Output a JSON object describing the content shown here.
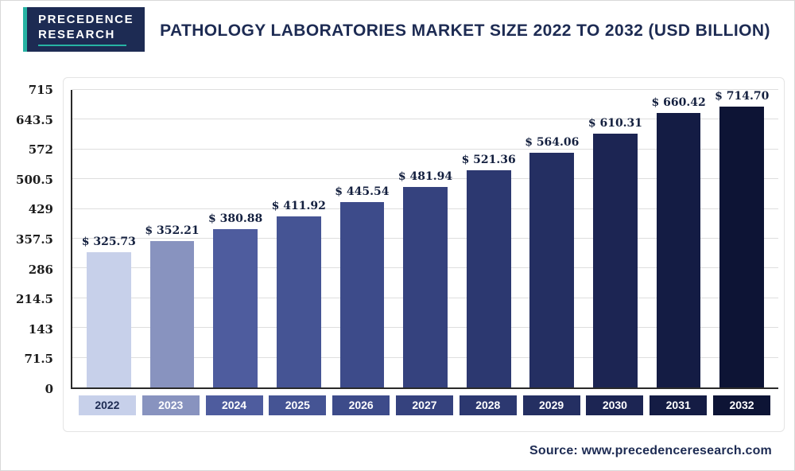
{
  "logo": {
    "line1": "PRECEDENCE",
    "line2": "RESEARCH"
  },
  "header": {
    "title": "PATHOLOGY LABORATORIES MARKET SIZE 2022 TO 2032 (USD BILLION)"
  },
  "footer": {
    "source": "Source: www.precedenceresearch.com"
  },
  "accent_colors": {
    "navy": "#1d2b53",
    "teal": "#27b3a3"
  },
  "chart_data": {
    "type": "bar",
    "title": "PATHOLOGY LABORATORIES MARKET SIZE 2022 TO 2032 (USD BILLION)",
    "unit": "USD Billion",
    "categories": [
      "2022",
      "2023",
      "2024",
      "2025",
      "2026",
      "2027",
      "2028",
      "2029",
      "2030",
      "2031",
      "2032"
    ],
    "values": [
      325.73,
      352.21,
      380.88,
      411.92,
      445.54,
      481.94,
      521.36,
      564.06,
      610.31,
      660.42,
      714.7
    ],
    "value_labels": [
      "$ 325.73",
      "$ 352.21",
      "$ 380.88",
      "$ 411.92",
      "$ 445.54",
      "$ 481.94",
      "$ 521.36",
      "$ 564.06",
      "$ 610.31",
      "$ 660.42",
      "$ 714.70"
    ],
    "bar_colors": [
      "#c7d0ea",
      "#8893bf",
      "#4e5c9e",
      "#455494",
      "#3d4b8a",
      "#35427e",
      "#2c3870",
      "#242f62",
      "#1c2553",
      "#141c44",
      "#0d1435"
    ],
    "x_label_text_colors": [
      "#1d2b53",
      "#ffffff",
      "#ffffff",
      "#ffffff",
      "#ffffff",
      "#ffffff",
      "#ffffff",
      "#ffffff",
      "#ffffff",
      "#ffffff",
      "#ffffff"
    ],
    "ylim": [
      0,
      715
    ],
    "yticks": [
      "0",
      "71.5",
      "143",
      "214.5",
      "286",
      "357.5",
      "429",
      "500.5",
      "572",
      "643.5",
      "715"
    ],
    "grid": true,
    "legend": "none",
    "xlabel": "",
    "ylabel": ""
  }
}
